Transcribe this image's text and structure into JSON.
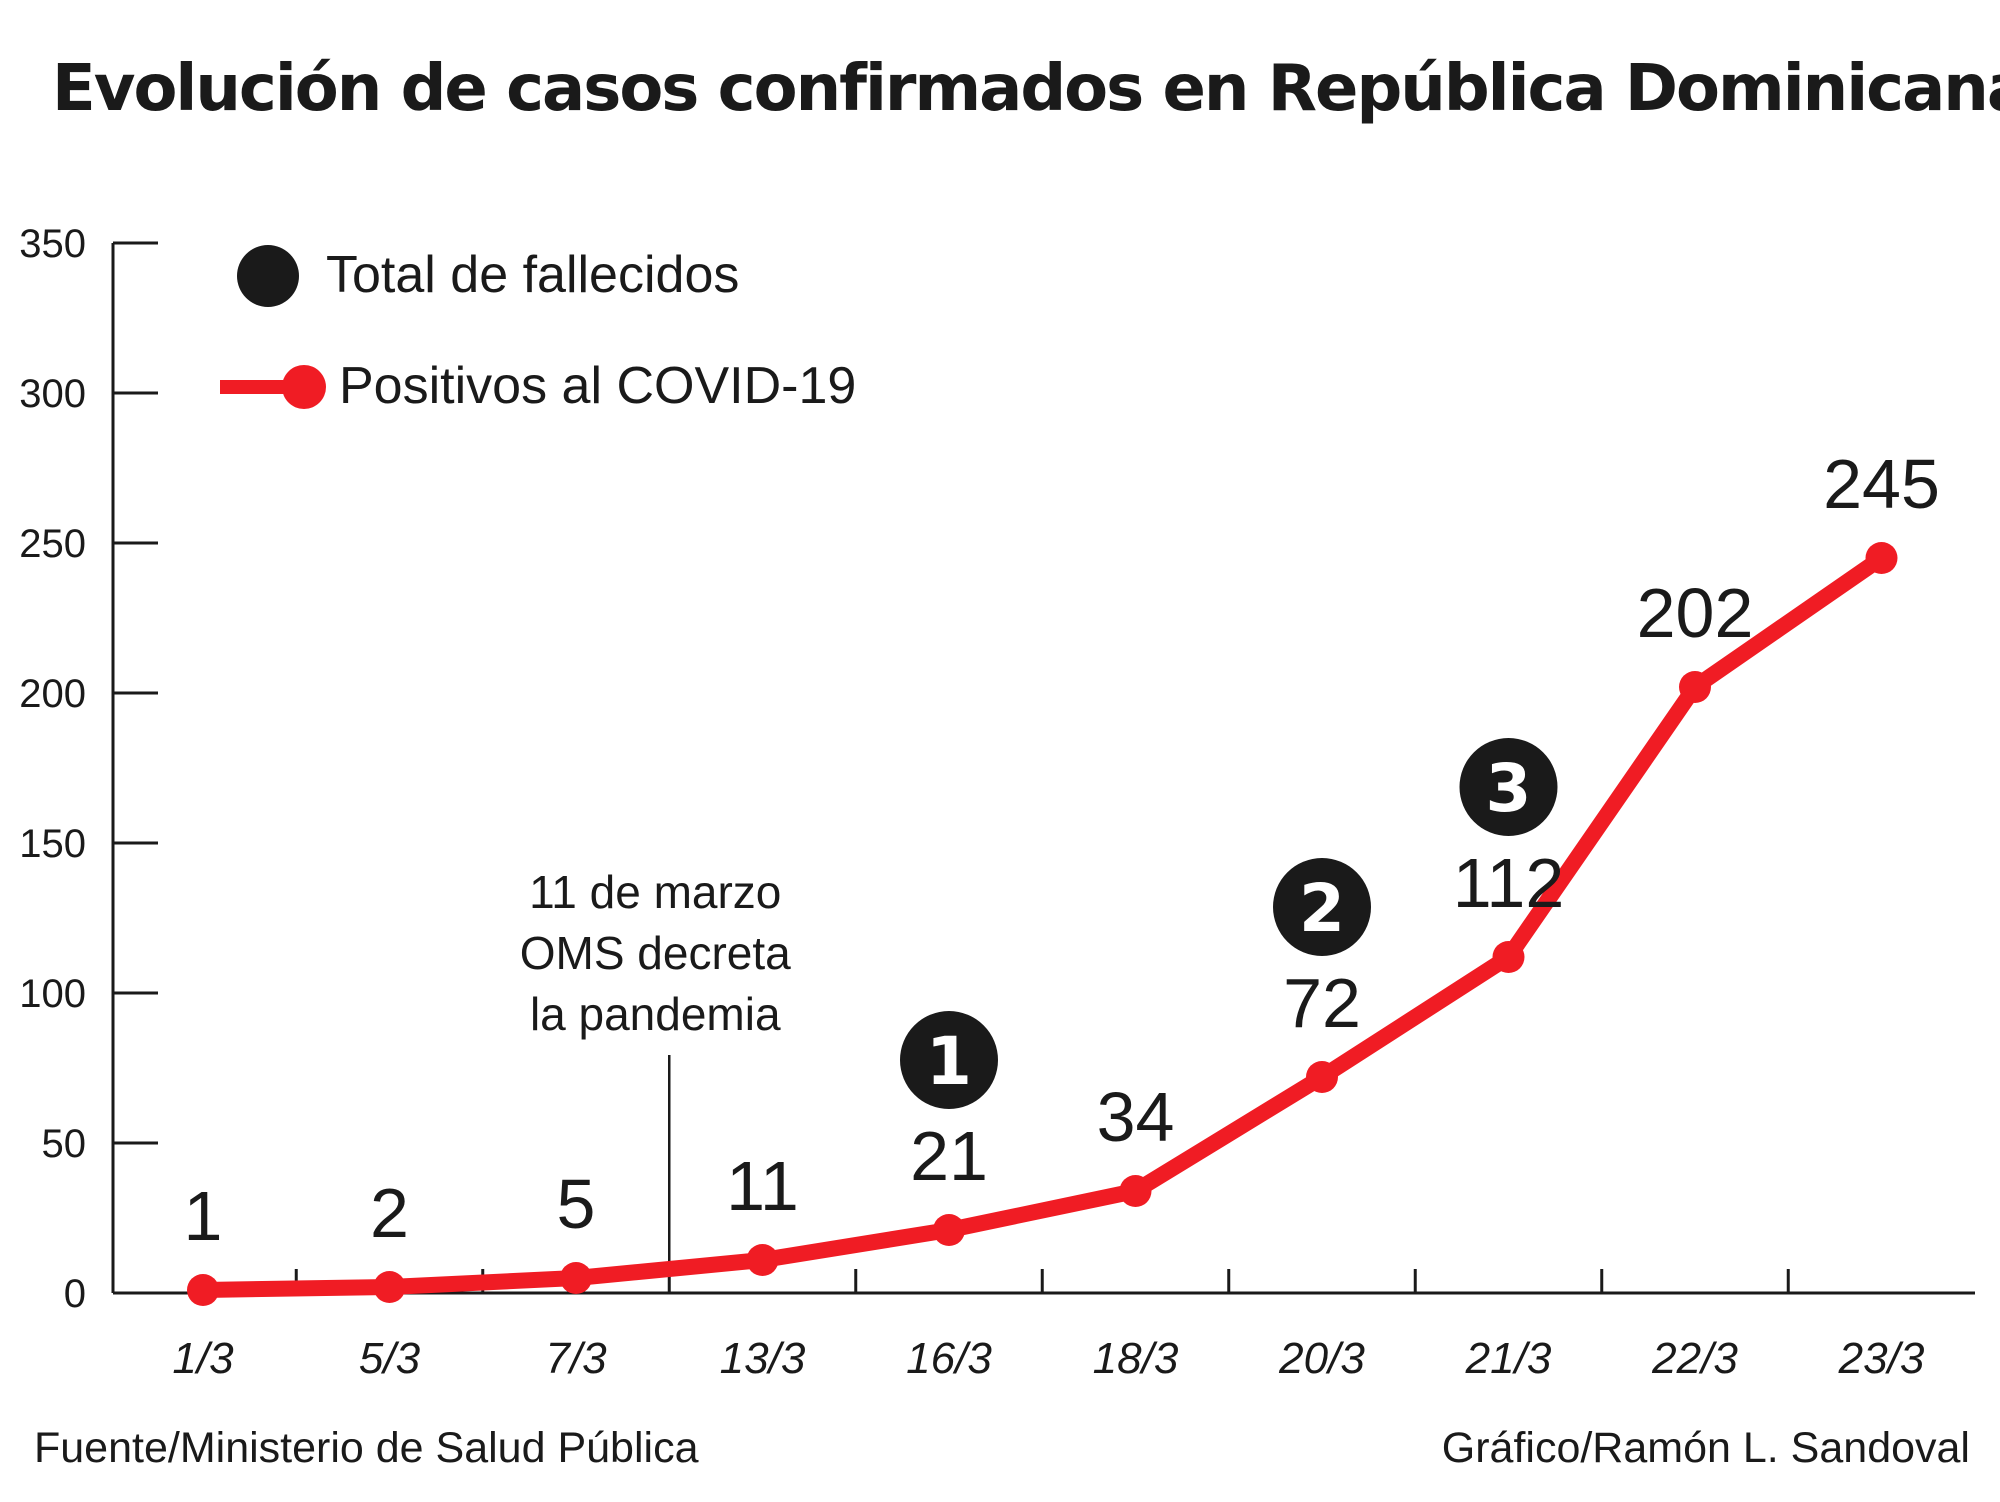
{
  "title": "Evolución de casos confirmados en República Dominicana",
  "legend": {
    "deaths_label": "Total de fallecidos",
    "cases_label": "Positivos al COVID-19"
  },
  "annotation": {
    "lines": [
      "11 de marzo",
      "OMS decreta",
      "la pandemia"
    ],
    "x_position_index": 2.5
  },
  "colors": {
    "line": "#f01c24",
    "marker_dark": "#1a1a1a",
    "axis": "#1a1a1a"
  },
  "chart_data": {
    "type": "line",
    "title": "Evolución de casos confirmados en República Dominicana",
    "categories": [
      "1/3",
      "5/3",
      "7/3",
      "13/3",
      "16/3",
      "18/3",
      "20/3",
      "21/3",
      "22/3",
      "23/3"
    ],
    "series": [
      {
        "name": "Positivos al COVID-19",
        "values": [
          1,
          2,
          5,
          11,
          21,
          34,
          72,
          112,
          202,
          245
        ],
        "data_labels": [
          "1",
          "2",
          "5",
          "11",
          "21",
          "34",
          "72",
          "112",
          "202",
          "245"
        ]
      },
      {
        "name": "Total de fallecidos",
        "points": [
          {
            "category": "16/3",
            "value": 1
          },
          {
            "category": "20/3",
            "value": 2
          },
          {
            "category": "21/3",
            "value": 3
          }
        ]
      }
    ],
    "y_ticks": [
      0,
      50,
      100,
      150,
      200,
      250,
      300,
      350
    ],
    "ylim": [
      0,
      350
    ],
    "xlabel": "",
    "ylabel": "",
    "legend_position": "top-left",
    "grid": false
  },
  "footer": {
    "source": "Fuente/Ministerio de Salud Pública",
    "credit": "Gráfico/Ramón L. Sandoval"
  }
}
